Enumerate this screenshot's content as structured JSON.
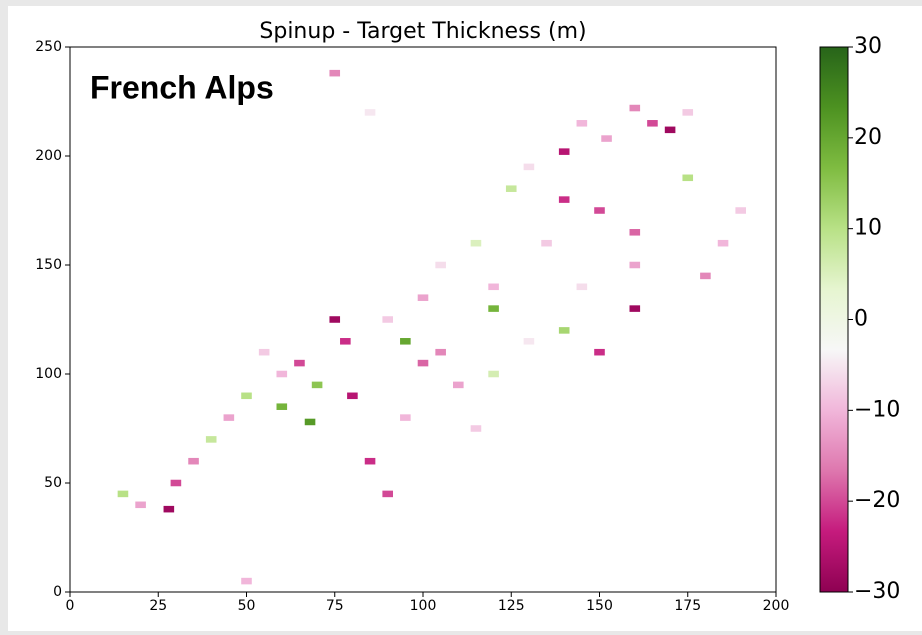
{
  "chart_data": {
    "type": "heatmap",
    "title": "Spinup - Target Thickness (m)",
    "annotation": "French Alps",
    "xlim": [
      0,
      200
    ],
    "xticks": [
      0,
      25,
      50,
      75,
      100,
      125,
      150,
      175,
      200
    ],
    "ylim": [
      0,
      250
    ],
    "yticks": [
      0,
      50,
      100,
      150,
      200,
      250
    ],
    "colorbar": {
      "lim": [
        -30,
        30
      ],
      "ticks": [
        {
          "value": -30,
          "label": "−30"
        },
        {
          "value": -20,
          "label": "−20"
        },
        {
          "value": -10,
          "label": "−10"
        },
        0,
        10,
        20,
        30
      ],
      "colormap": [
        "#8e0152",
        "#c51b7d",
        "#de77ae",
        "#f1b6da",
        "#f7f7f7",
        "#e6f5d0",
        "#b8e186",
        "#7fbc41",
        "#4d9221",
        "#276419"
      ]
    },
    "cells": {
      "x": [
        140,
        170,
        165,
        152,
        160,
        175,
        145,
        140,
        150,
        160,
        130,
        125,
        160,
        135,
        120,
        115,
        105,
        100,
        90,
        75,
        78,
        65,
        70,
        60,
        55,
        50,
        45,
        40,
        35,
        30,
        28,
        20,
        15,
        80,
        85,
        90,
        95,
        105,
        115,
        120,
        130,
        140,
        150,
        180,
        185,
        190,
        175,
        110,
        100,
        95,
        120,
        145,
        160,
        50,
        75,
        85,
        68,
        60
      ],
      "y": [
        202,
        212,
        215,
        208,
        222,
        220,
        215,
        180,
        175,
        165,
        195,
        185,
        130,
        160,
        140,
        160,
        150,
        135,
        125,
        125,
        115,
        105,
        95,
        100,
        110,
        90,
        80,
        70,
        60,
        50,
        38,
        40,
        45,
        90,
        60,
        45,
        80,
        110,
        75,
        100,
        115,
        120,
        110,
        145,
        160,
        175,
        190,
        95,
        105,
        115,
        130,
        140,
        150,
        5,
        238,
        220,
        78,
        85
      ],
      "values": [
        -25,
        -28,
        -20,
        -12,
        -15,
        -8,
        -10,
        -22,
        -20,
        -18,
        -6,
        8,
        -28,
        -8,
        -10,
        5,
        -6,
        -12,
        -8,
        -28,
        -22,
        -20,
        15,
        -10,
        -8,
        10,
        -12,
        8,
        -15,
        -20,
        -28,
        -12,
        10,
        -25,
        -22,
        -20,
        -10,
        -15,
        -8,
        6,
        -5,
        12,
        -22,
        -15,
        -10,
        -8,
        10,
        -12,
        -18,
        20,
        18,
        -6,
        -12,
        -10,
        -15,
        -5,
        22,
        18
      ]
    }
  }
}
